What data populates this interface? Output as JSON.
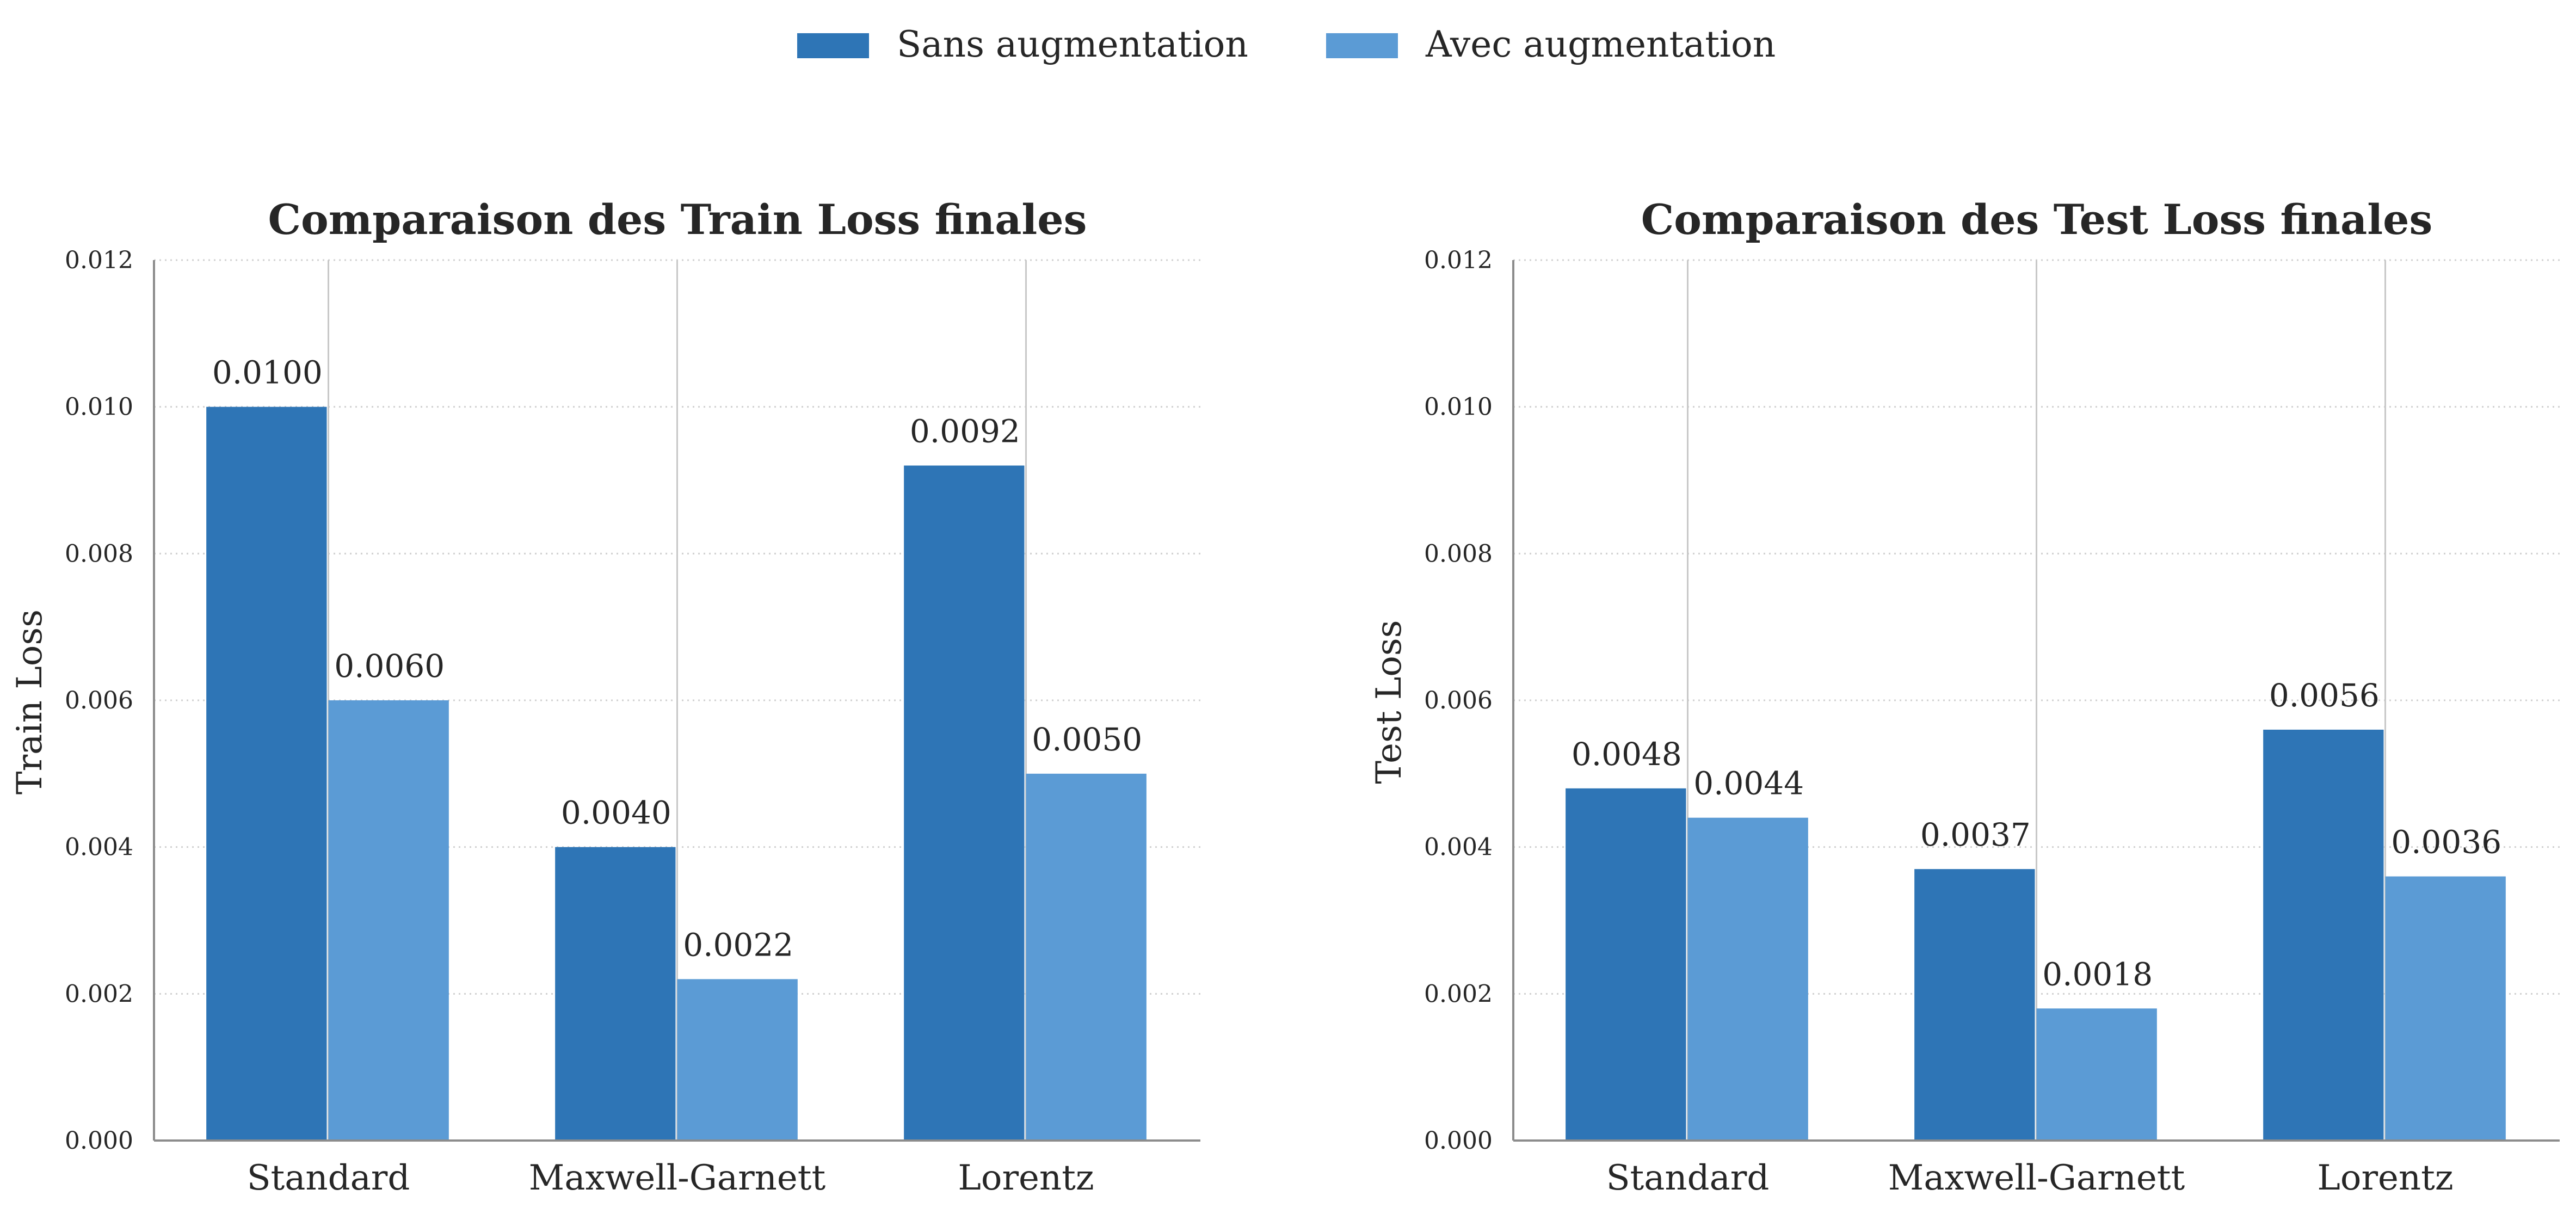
{
  "legend": {
    "entries": [
      {
        "label": "Sans augmentation",
        "color": "#2e75b6"
      },
      {
        "label": "Avec augmentation",
        "color": "#5b9bd5"
      }
    ],
    "placement": "top-center"
  },
  "chart_data": [
    {
      "type": "bar",
      "title": "Comparaison des Train Loss finales",
      "xlabel": "",
      "ylabel": "Train Loss",
      "categories": [
        "Standard",
        "Maxwell-Garnett",
        "Lorentz"
      ],
      "series": [
        {
          "name": "Sans augmentation",
          "values": [
            0.01,
            0.004,
            0.0092
          ],
          "labels": [
            "0.0100",
            "0.0040",
            "0.0092"
          ],
          "color": "#2e75b6"
        },
        {
          "name": "Avec augmentation",
          "values": [
            0.006,
            0.0022,
            0.005
          ],
          "labels": [
            "0.0060",
            "0.0022",
            "0.0050"
          ],
          "color": "#5b9bd5"
        }
      ],
      "ylim": [
        0,
        0.012
      ],
      "yticks": [
        0,
        0.002,
        0.004,
        0.006,
        0.008,
        0.01,
        0.012
      ],
      "ytick_labels": [
        "0.000",
        "0.002",
        "0.004",
        "0.006",
        "0.008",
        "0.010",
        "0.012"
      ],
      "grid": true
    },
    {
      "type": "bar",
      "title": "Comparaison des Test Loss finales",
      "xlabel": "",
      "ylabel": "Test Loss",
      "categories": [
        "Standard",
        "Maxwell-Garnett",
        "Lorentz"
      ],
      "series": [
        {
          "name": "Sans augmentation",
          "values": [
            0.0048,
            0.0037,
            0.0056
          ],
          "labels": [
            "0.0048",
            "0.0037",
            "0.0056"
          ],
          "color": "#2e75b6"
        },
        {
          "name": "Avec augmentation",
          "values": [
            0.0044,
            0.0018,
            0.0036
          ],
          "labels": [
            "0.0044",
            "0.0018",
            "0.0036"
          ],
          "color": "#5b9bd5"
        }
      ],
      "ylim": [
        0,
        0.012
      ],
      "yticks": [
        0,
        0.002,
        0.004,
        0.006,
        0.008,
        0.01,
        0.012
      ],
      "ytick_labels": [
        "0.000",
        "0.002",
        "0.004",
        "0.006",
        "0.008",
        "0.010",
        "0.012"
      ],
      "grid": true
    }
  ]
}
